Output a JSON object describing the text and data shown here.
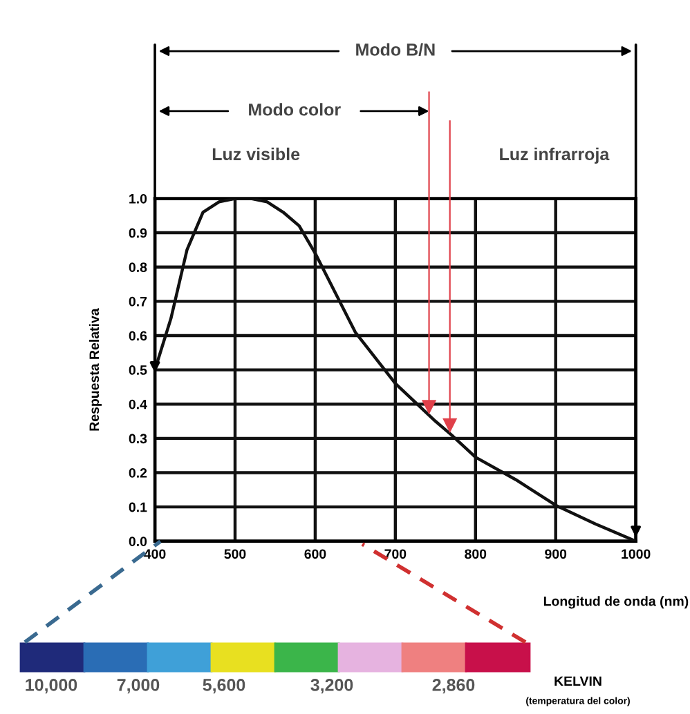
{
  "chart_data": {
    "type": "line",
    "x": [
      400,
      420,
      440,
      460,
      480,
      500,
      520,
      540,
      560,
      580,
      600,
      650,
      700,
      750,
      770,
      800,
      850,
      900,
      950,
      1000
    ],
    "series": [
      {
        "color": "#111111",
        "values": [
          0.5,
          0.65,
          0.85,
          0.96,
          0.99,
          1.0,
          1.0,
          0.99,
          0.96,
          0.92,
          0.84,
          0.61,
          0.46,
          0.35,
          0.31,
          0.245,
          0.18,
          0.105,
          0.05,
          0.0
        ]
      }
    ],
    "xlim": [
      400,
      1000
    ],
    "ylim": [
      0,
      1.0
    ],
    "xticks": [
      400,
      500,
      600,
      700,
      800,
      900,
      1000
    ],
    "yticks": [
      {
        "value": 0,
        "label": "0.0"
      },
      0.1,
      0.2,
      0.3,
      0.4,
      0.5,
      0.6,
      0.7,
      0.8,
      0.9,
      {
        "value": 1,
        "label": "1.0"
      }
    ],
    "xlabel": "Longitud de onda (nm)",
    "ylabel": "Respuesta Relativa",
    "ref_lines": [
      {
        "axis": "x",
        "value": 742,
        "color": "#e0404a"
      },
      {
        "axis": "x",
        "value": 768,
        "color": "#e0404a"
      }
    ],
    "grid": true,
    "marker": "none",
    "line_style": "solid",
    "annotations": [
      "Modo B/N",
      "Modo color",
      "Luz visible",
      "Luz infrarroja",
      "10,000",
      "7,000",
      "5,600",
      "3,200",
      "2,860",
      "KELVIN",
      "(temperatura del color)"
    ]
  }
}
